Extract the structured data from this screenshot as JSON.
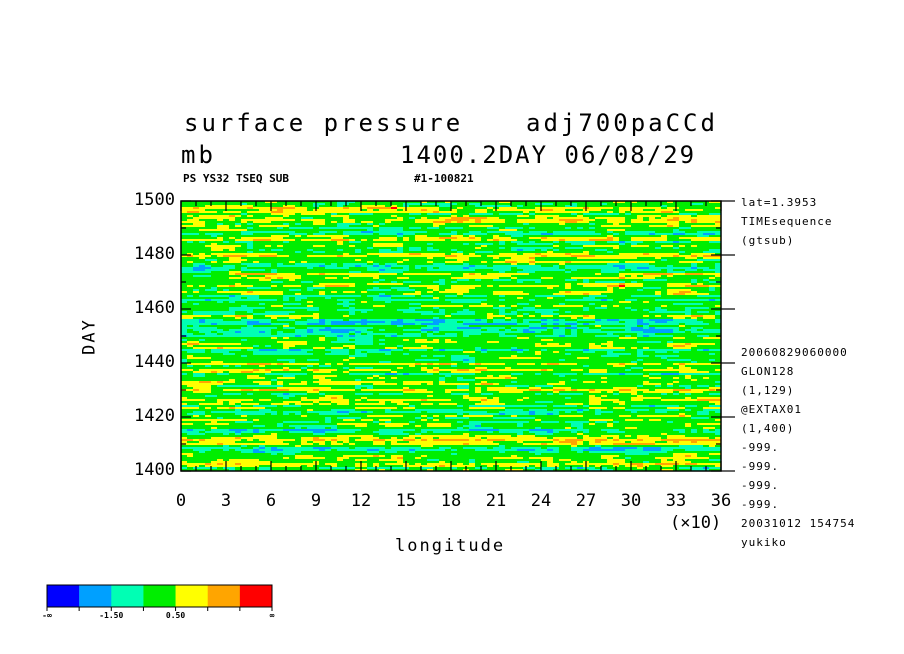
{
  "header": {
    "title_left": "surface pressure",
    "title_right": "adj700paCCd",
    "units": "mb",
    "time_label": "1400.2DAY 06/08/29",
    "sub_left": "PS YS32 TSEQ SUB",
    "sub_right": "#1-100821"
  },
  "side_meta": {
    "top": [
      "lat=1.3953",
      "TIMEsequence",
      "(gtsub)"
    ],
    "bottom": [
      "20060829060000",
      "GLON128",
      "(1,129)",
      "@EXTAX01",
      "(1,400)",
      "-999.",
      "-999.",
      "-999.",
      "-999.",
      "20031012 154754",
      "yukiko"
    ]
  },
  "chart_data": {
    "type": "heatmap",
    "title": "surface pressure",
    "xlabel": "longitude",
    "ylabel": "DAY",
    "x_multiplier": "(×10)",
    "xlim": [
      0,
      36
    ],
    "ylim": [
      1400,
      1500
    ],
    "x_ticks": [
      "0",
      "3",
      "6",
      "9",
      "12",
      "15",
      "18",
      "21",
      "24",
      "27",
      "30",
      "33",
      "36"
    ],
    "y_ticks": [
      "1400",
      "1420",
      "1440",
      "1460",
      "1480",
      "1500"
    ],
    "colorbar": {
      "colors": [
        "#0000ff",
        "#00a0ff",
        "#00ffb4",
        "#00ee00",
        "#ffff00",
        "#ffa500",
        "#ff0000"
      ],
      "labels": [
        "-∞",
        "-1.50",
        "0.50",
        "∞"
      ]
    }
  }
}
